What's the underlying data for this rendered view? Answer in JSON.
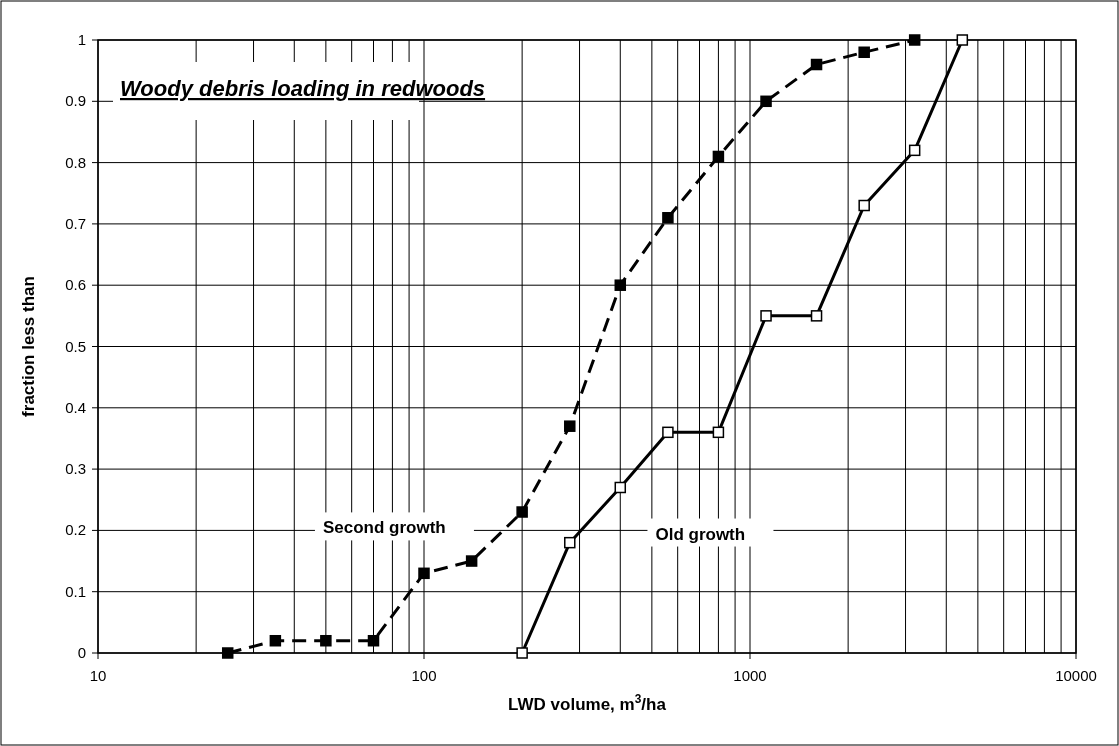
{
  "chart_data": {
    "type": "line",
    "title": "Woody debris loading in redwoods",
    "xlabel": "LWD volume, m$^{3}$/ha",
    "ylabel": "fraction less than",
    "log": "x",
    "xlim": [
      10,
      10000
    ],
    "xticks": [
      10,
      100,
      1000,
      10000
    ],
    "ylim": [
      0,
      1
    ],
    "yticks": [
      0,
      0.1,
      0.2,
      0.3,
      0.4,
      0.5,
      0.6,
      0.7,
      0.8,
      0.9,
      1
    ],
    "grid": true,
    "marker": "square",
    "series": [
      {
        "name": "Second growth",
        "color": "#000000",
        "line_style": "dashed",
        "x": [
          25,
          35,
          50,
          70,
          100,
          140,
          200,
          280,
          400,
          560,
          800,
          1120,
          1600,
          2240,
          3200
        ],
        "values": [
          0,
          0.02,
          0.02,
          0.02,
          0.13,
          0.15,
          0.23,
          0.37,
          0.6,
          0.71,
          0.81,
          0.9,
          0.96,
          0.98,
          1
        ]
      },
      {
        "name": "Old growth",
        "color": "#000000",
        "line_style": "solid",
        "x": [
          200,
          280,
          400,
          560,
          800,
          1120,
          1600,
          2240,
          3200,
          4480
        ],
        "values": [
          0,
          0.18,
          0.27,
          0.36,
          0.36,
          0.55,
          0.55,
          0.73,
          0.82,
          1
        ]
      }
    ]
  }
}
